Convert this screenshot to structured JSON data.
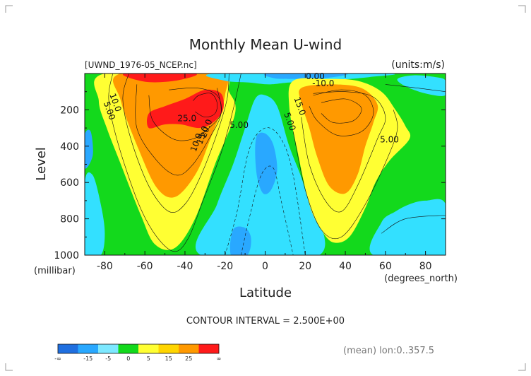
{
  "chart_data": {
    "type": "contour",
    "title": "Monthly Mean U-wind",
    "dataset_label": "[UWND_1976-05_NCEP.nc]",
    "units_label": "(units:m/s)",
    "xlabel": "Latitude",
    "x_units": "(degrees_north)",
    "ylabel": "Level",
    "y_units": "(millibar)",
    "x_ticks": [
      -80,
      -60,
      -40,
      -20,
      0,
      20,
      40,
      60,
      80
    ],
    "y_ticks": [
      200,
      400,
      600,
      800,
      1000
    ],
    "xlim": [
      -90,
      90
    ],
    "ylim": [
      0,
      1000
    ],
    "y_inverted": true,
    "contour_interval_text": "CONTOUR INTERVAL = 2.500E+00",
    "footer_note": "(mean) lon:0..357.5",
    "contour_labels": [
      {
        "text": "10.0",
        "x": -76,
        "y": 165
      },
      {
        "text": "5.00",
        "x": -79,
        "y": 210
      },
      {
        "text": "25.0",
        "x": -39,
        "y": 262
      },
      {
        "text": "20.0",
        "x": -28,
        "y": 308
      },
      {
        "text": "15.0",
        "x": -30,
        "y": 345
      },
      {
        "text": "10.0",
        "x": -33,
        "y": 385
      },
      {
        "text": "5.00",
        "x": -13,
        "y": 300
      },
      {
        "text": "0.00",
        "x": 25,
        "y": 32
      },
      {
        "text": "-10.0",
        "x": 29,
        "y": 70
      },
      {
        "text": "15.0",
        "x": 16,
        "y": 185
      },
      {
        "text": "5.00",
        "x": 11,
        "y": 270
      },
      {
        "text": "5.00",
        "x": 62,
        "y": 380
      }
    ],
    "colorbar": {
      "boundary_labels": [
        "-∞",
        "-15",
        "-5",
        "0",
        "5",
        "15",
        "25",
        "∞"
      ],
      "colors": [
        "#1f6fe0",
        "#29a8ff",
        "#7de8ff",
        "#13d91c",
        "#ffff33",
        "#ffd500",
        "#ff9900",
        "#ff1a1a"
      ]
    },
    "fill_colors": {
      "strong_neg": "#1f6fe0",
      "mid_neg": "#29a8ff",
      "weak_neg": "#33e0ff",
      "low_pos": "#13d91c",
      "mid_pos": "#ffff33",
      "high_pos": "#ff9900",
      "max_pos": "#ff1a1a"
    },
    "regions": [
      {
        "name": "sh-yellow",
        "level": "mid_pos",
        "pts": [
          [
            -80,
            0
          ],
          [
            -24,
            0
          ],
          [
            -18,
            100
          ],
          [
            -15,
            220
          ],
          [
            -25,
            500
          ],
          [
            -35,
            800
          ],
          [
            -45,
            960
          ],
          [
            -55,
            940
          ],
          [
            -62,
            780
          ],
          [
            -72,
            500
          ],
          [
            -79,
            300
          ],
          [
            -83,
            150
          ]
        ]
      },
      {
        "name": "sh-orange",
        "level": "high_pos",
        "pts": [
          [
            -72,
            0
          ],
          [
            -24,
            0
          ],
          [
            -20,
            120
          ],
          [
            -28,
            380
          ],
          [
            -35,
            560
          ],
          [
            -45,
            680
          ],
          [
            -54,
            630
          ],
          [
            -63,
            420
          ],
          [
            -72,
            150
          ]
        ]
      },
      {
        "name": "sh-red-jet",
        "level": "max_pos",
        "pts": [
          [
            -58,
            220
          ],
          [
            -50,
            180
          ],
          [
            -40,
            140
          ],
          [
            -30,
            90
          ],
          [
            -22,
            110
          ],
          [
            -21,
            200
          ],
          [
            -26,
            270
          ],
          [
            -33,
            300
          ],
          [
            -42,
            280
          ],
          [
            -50,
            280
          ],
          [
            -58,
            300
          ]
        ]
      },
      {
        "name": "sh-red-top",
        "level": "max_pos",
        "pts": [
          [
            -70,
            0
          ],
          [
            -35,
            0
          ],
          [
            -45,
            40
          ],
          [
            -60,
            45
          ]
        ]
      },
      {
        "name": "trop-cyan",
        "level": "weak_neg",
        "pts": [
          [
            -32,
            1000
          ],
          [
            -24,
            720
          ],
          [
            -16,
            500
          ],
          [
            -10,
            300
          ],
          [
            -5,
            140
          ],
          [
            0,
            120
          ],
          [
            6,
            180
          ],
          [
            12,
            400
          ],
          [
            20,
            640
          ],
          [
            27,
            1000
          ]
        ]
      },
      {
        "name": "trop-blue",
        "level": "mid_neg",
        "pts": [
          [
            -4,
            340
          ],
          [
            0,
            330
          ],
          [
            4,
            390
          ],
          [
            6,
            530
          ],
          [
            3,
            640
          ],
          [
            -1,
            660
          ],
          [
            -4,
            570
          ],
          [
            -5,
            430
          ]
        ]
      },
      {
        "name": "trop-blue-low",
        "level": "mid_neg",
        "pts": [
          [
            -16,
            860
          ],
          [
            -10,
            850
          ],
          [
            -7,
            910
          ],
          [
            -9,
            1000
          ],
          [
            -17,
            1000
          ]
        ]
      },
      {
        "name": "top-cyan",
        "level": "weak_neg",
        "pts": [
          [
            -24,
            0
          ],
          [
            60,
            0
          ],
          [
            52,
            20
          ],
          [
            30,
            40
          ],
          [
            12,
            50
          ],
          [
            2,
            60
          ],
          [
            -8,
            50
          ],
          [
            -20,
            40
          ]
        ]
      },
      {
        "name": "top-blue",
        "level": "mid_neg",
        "pts": [
          [
            2,
            0
          ],
          [
            40,
            0
          ],
          [
            30,
            25
          ],
          [
            12,
            30
          ],
          [
            4,
            25
          ]
        ]
      },
      {
        "name": "nh-yellow",
        "level": "mid_pos",
        "pts": [
          [
            14,
            40
          ],
          [
            30,
            30
          ],
          [
            46,
            40
          ],
          [
            58,
            100
          ],
          [
            65,
            200
          ],
          [
            70,
            290
          ],
          [
            72,
            360
          ],
          [
            62,
            480
          ],
          [
            55,
            600
          ],
          [
            50,
            740
          ],
          [
            42,
            900
          ],
          [
            34,
            930
          ],
          [
            28,
            860
          ],
          [
            22,
            720
          ],
          [
            16,
            420
          ],
          [
            12,
            180
          ]
        ]
      },
      {
        "name": "nh-orange",
        "level": "high_pos",
        "pts": [
          [
            18,
            80
          ],
          [
            32,
            60
          ],
          [
            48,
            80
          ],
          [
            56,
            170
          ],
          [
            54,
            270
          ],
          [
            50,
            400
          ],
          [
            46,
            560
          ],
          [
            40,
            660
          ],
          [
            32,
            620
          ],
          [
            26,
            460
          ],
          [
            22,
            300
          ],
          [
            18,
            160
          ]
        ]
      },
      {
        "name": "nh-cyan-high",
        "level": "weak_neg",
        "pts": [
          [
            66,
            30
          ],
          [
            74,
            10
          ],
          [
            85,
            20
          ],
          [
            90,
            40
          ],
          [
            90,
            120
          ],
          [
            80,
            110
          ],
          [
            70,
            70
          ]
        ]
      },
      {
        "name": "nh-cyan-low",
        "level": "weak_neg",
        "pts": [
          [
            54,
            1000
          ],
          [
            58,
            820
          ],
          [
            65,
            760
          ],
          [
            72,
            720
          ],
          [
            80,
            700
          ],
          [
            90,
            720
          ],
          [
            90,
            1000
          ]
        ]
      },
      {
        "name": "sh-cyan-low",
        "level": "weak_neg",
        "pts": [
          [
            -90,
            600
          ],
          [
            -86,
            560
          ],
          [
            -82,
            720
          ],
          [
            -80,
            880
          ],
          [
            -82,
            1000
          ],
          [
            -90,
            1000
          ]
        ]
      },
      {
        "name": "sh-blue-edge",
        "level": "mid_neg",
        "pts": [
          [
            -90,
            340
          ],
          [
            -87,
            320
          ],
          [
            -86,
            450
          ],
          [
            -90,
            520
          ]
        ]
      }
    ],
    "contour_lines": [
      [
        [
          -76,
          0
        ],
        [
          -78,
          150
        ],
        [
          -73,
          400
        ],
        [
          -63,
          720
        ],
        [
          -54,
          900
        ],
        [
          -45,
          980
        ],
        [
          -38,
          900
        ],
        [
          -31,
          700
        ],
        [
          -22,
          440
        ],
        [
          -16,
          200
        ],
        [
          -12,
          0
        ]
      ],
      [
        [
          -68,
          0
        ],
        [
          -71,
          140
        ],
        [
          -67,
          360
        ],
        [
          -58,
          620
        ],
        [
          -48,
          760
        ],
        [
          -40,
          720
        ],
        [
          -32,
          560
        ],
        [
          -24,
          330
        ],
        [
          -19,
          140
        ],
        [
          -18,
          0
        ]
      ],
      [
        [
          -64,
          60
        ],
        [
          -64,
          300
        ],
        [
          -54,
          480
        ],
        [
          -44,
          560
        ],
        [
          -36,
          500
        ],
        [
          -28,
          360
        ],
        [
          -22,
          220
        ],
        [
          -24,
          80
        ]
      ],
      [
        [
          -58,
          120
        ],
        [
          -56,
          260
        ],
        [
          -46,
          360
        ],
        [
          -36,
          360
        ],
        [
          -28,
          300
        ],
        [
          -22,
          220
        ],
        [
          -24,
          120
        ],
        [
          -34,
          80
        ],
        [
          -48,
          90
        ]
      ],
      [
        [
          -36,
          150
        ],
        [
          -33,
          120
        ],
        [
          -27,
          110
        ],
        [
          -24,
          160
        ],
        [
          -25,
          220
        ],
        [
          -30,
          240
        ],
        [
          -35,
          210
        ]
      ],
      [
        [
          -12,
          1000
        ],
        [
          -8,
          800
        ],
        [
          -2,
          560
        ],
        [
          4,
          520
        ],
        [
          8,
          700
        ],
        [
          14,
          1000
        ]
      ],
      [
        [
          -20,
          1000
        ],
        [
          -14,
          760
        ],
        [
          -8,
          420
        ],
        [
          0,
          300
        ],
        [
          8,
          360
        ],
        [
          14,
          560
        ],
        [
          20,
          1000
        ]
      ],
      [
        [
          24,
          120
        ],
        [
          38,
          90
        ],
        [
          50,
          120
        ],
        [
          54,
          220
        ],
        [
          48,
          320
        ],
        [
          36,
          340
        ],
        [
          26,
          260
        ],
        [
          22,
          180
        ]
      ],
      [
        [
          28,
          160
        ],
        [
          40,
          140
        ],
        [
          48,
          190
        ],
        [
          44,
          260
        ],
        [
          34,
          270
        ],
        [
          28,
          220
        ]
      ],
      [
        [
          18,
          240
        ],
        [
          22,
          500
        ],
        [
          30,
          700
        ],
        [
          38,
          760
        ],
        [
          46,
          620
        ],
        [
          56,
          360
        ],
        [
          60,
          240
        ],
        [
          54,
          130
        ],
        [
          40,
          100
        ],
        [
          24,
          110
        ]
      ],
      [
        [
          14,
          320
        ],
        [
          20,
          640
        ],
        [
          28,
          860
        ],
        [
          38,
          900
        ],
        [
          50,
          720
        ],
        [
          62,
          440
        ],
        [
          66,
          300
        ],
        [
          64,
          200
        ]
      ],
      [
        [
          60,
          60
        ],
        [
          76,
          80
        ],
        [
          90,
          100
        ]
      ],
      [
        [
          58,
          880
        ],
        [
          70,
          800
        ],
        [
          90,
          780
        ]
      ]
    ]
  }
}
